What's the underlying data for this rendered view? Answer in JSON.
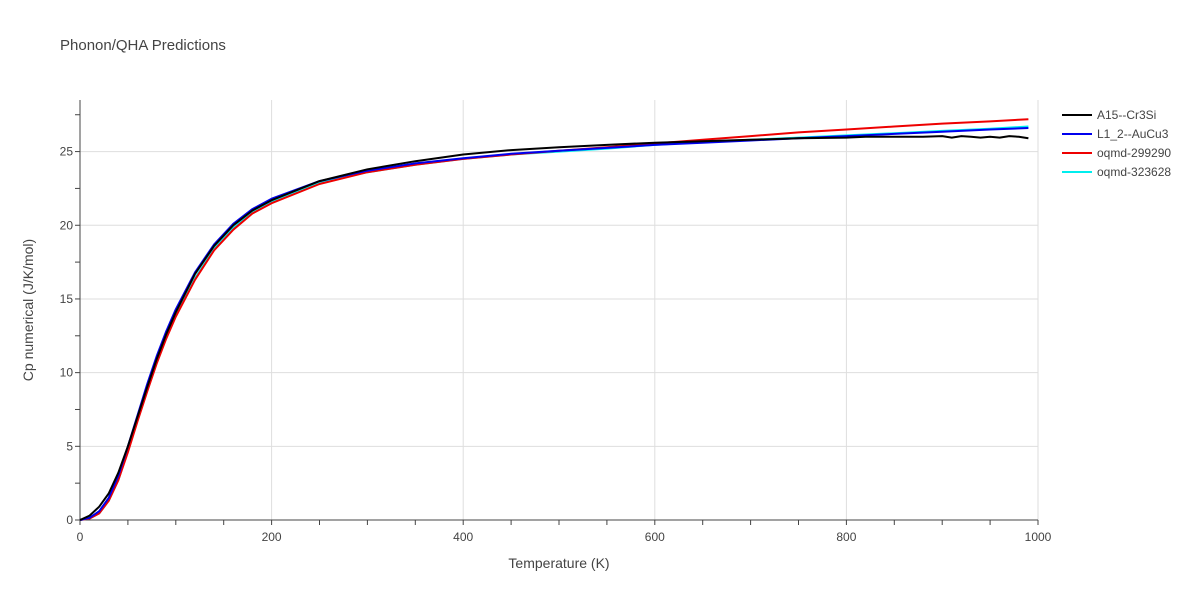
{
  "chart_data": {
    "type": "line",
    "title": "Phonon/QHA Predictions",
    "xlabel": "Temperature (K)",
    "ylabel": "Cp numerical (J/K/mol)",
    "xlim": [
      0,
      1000
    ],
    "ylim": [
      0,
      28.5
    ],
    "xticks": [
      0,
      200,
      400,
      600,
      800,
      1000
    ],
    "yticks": [
      0,
      5,
      10,
      15,
      20,
      25
    ],
    "grid": true,
    "legend_position": "top-right",
    "series": [
      {
        "name": "A15--Cr3Si",
        "color": "#000000",
        "x": [
          0,
          10,
          20,
          30,
          40,
          50,
          60,
          70,
          80,
          90,
          100,
          120,
          140,
          160,
          180,
          200,
          250,
          300,
          350,
          400,
          450,
          500,
          550,
          600,
          650,
          700,
          750,
          800,
          820,
          850,
          880,
          900,
          910,
          920,
          930,
          940,
          950,
          960,
          970,
          980,
          990
        ],
        "y": [
          0,
          0.3,
          0.9,
          1.8,
          3.2,
          5.0,
          7.0,
          9.0,
          10.9,
          12.6,
          14.1,
          16.7,
          18.6,
          20.0,
          21.0,
          21.7,
          23.0,
          23.8,
          24.35,
          24.8,
          25.1,
          25.3,
          25.45,
          25.6,
          25.7,
          25.8,
          25.9,
          25.95,
          26.0,
          26.0,
          26.0,
          26.05,
          25.95,
          26.05,
          26.0,
          25.95,
          26.0,
          25.95,
          26.05,
          26.0,
          25.9
        ]
      },
      {
        "name": "L1_2--AuCu3",
        "color": "#0000ee",
        "x": [
          0,
          10,
          20,
          30,
          40,
          50,
          60,
          70,
          80,
          90,
          100,
          120,
          140,
          160,
          180,
          200,
          250,
          300,
          350,
          400,
          450,
          500,
          550,
          600,
          650,
          700,
          750,
          800,
          850,
          900,
          950,
          990
        ],
        "y": [
          0,
          0.15,
          0.6,
          1.5,
          3.0,
          5.0,
          7.1,
          9.2,
          11.1,
          12.8,
          14.3,
          16.8,
          18.7,
          20.1,
          21.1,
          21.8,
          23.0,
          23.7,
          24.2,
          24.55,
          24.85,
          25.05,
          25.25,
          25.45,
          25.6,
          25.75,
          25.9,
          26.05,
          26.2,
          26.35,
          26.5,
          26.6
        ]
      },
      {
        "name": "oqmd-299290",
        "color": "#ee0000",
        "x": [
          0,
          10,
          20,
          30,
          40,
          50,
          60,
          70,
          80,
          90,
          100,
          120,
          140,
          160,
          180,
          200,
          250,
          300,
          350,
          400,
          450,
          500,
          550,
          600,
          650,
          700,
          750,
          800,
          850,
          900,
          950,
          990
        ],
        "y": [
          0,
          0.1,
          0.45,
          1.3,
          2.7,
          4.6,
          6.7,
          8.7,
          10.6,
          12.3,
          13.8,
          16.3,
          18.3,
          19.7,
          20.8,
          21.5,
          22.8,
          23.6,
          24.1,
          24.5,
          24.8,
          25.05,
          25.3,
          25.55,
          25.8,
          26.05,
          26.3,
          26.5,
          26.7,
          26.9,
          27.05,
          27.2
        ]
      },
      {
        "name": "oqmd-323628",
        "color": "#00eeee",
        "x": [
          0,
          10,
          20,
          30,
          40,
          50,
          60,
          70,
          80,
          90,
          100,
          120,
          140,
          160,
          180,
          200,
          250,
          300,
          350,
          400,
          450,
          500,
          550,
          600,
          650,
          700,
          750,
          800,
          850,
          900,
          950,
          990
        ],
        "y": [
          0,
          0.1,
          0.45,
          1.3,
          2.7,
          4.7,
          6.8,
          8.8,
          10.7,
          12.4,
          13.9,
          16.4,
          18.4,
          19.8,
          20.9,
          21.6,
          22.9,
          23.6,
          24.1,
          24.5,
          24.8,
          25.0,
          25.2,
          25.45,
          25.65,
          25.8,
          25.95,
          26.1,
          26.25,
          26.4,
          26.55,
          26.7
        ]
      }
    ]
  }
}
